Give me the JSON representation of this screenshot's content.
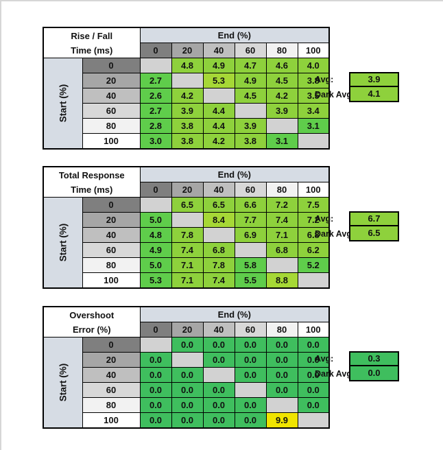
{
  "palette": {
    "green_low": "#5fcd4b",
    "green_mid": "#8ed13c",
    "green_high": "#a6d836",
    "green_pure": "#3fbe5e",
    "yellow": "#f0e400",
    "diagonal_gray": "#d2d2d2",
    "header_blue_gray": "#d6dce4",
    "header_shades": [
      "#7f7f7f",
      "#a6a6a6",
      "#bfbfbf",
      "#d8d8d8",
      "#f2f2f2",
      "#ffffff"
    ]
  },
  "labels": {
    "end_axis": "End (%)",
    "start_axis": "Start (%)",
    "avg": "Avg:",
    "dark_avg": "Dark Avg:"
  },
  "chart_data": [
    {
      "type": "table",
      "title": "Rise / Fall Time (ms)",
      "title_lines": [
        "Rise / Fall",
        "Time (ms)"
      ],
      "columns_label": "End (%)",
      "rows_label": "Start (%)",
      "columns": [
        "0",
        "20",
        "40",
        "60",
        "80",
        "100"
      ],
      "rows": [
        "0",
        "20",
        "40",
        "60",
        "80",
        "100"
      ],
      "values": [
        [
          "",
          "4.8",
          "4.9",
          "4.7",
          "4.6",
          "4.0"
        ],
        [
          "2.7",
          "",
          "5.3",
          "4.9",
          "4.5",
          "3.8"
        ],
        [
          "2.6",
          "4.2",
          "",
          "4.5",
          "4.2",
          "3.5"
        ],
        [
          "2.7",
          "3.9",
          "4.4",
          "",
          "3.9",
          "3.4"
        ],
        [
          "2.8",
          "3.8",
          "4.4",
          "3.9",
          "",
          "3.1"
        ],
        [
          "3.0",
          "3.8",
          "4.2",
          "3.8",
          "3.1",
          ""
        ]
      ],
      "cell_colors": [
        [
          "diagonal_gray",
          "green_mid",
          "green_mid",
          "green_mid",
          "green_mid",
          "green_mid"
        ],
        [
          "green_low",
          "diagonal_gray",
          "green_high",
          "green_mid",
          "green_mid",
          "green_mid"
        ],
        [
          "green_low",
          "green_mid",
          "diagonal_gray",
          "green_mid",
          "green_mid",
          "green_mid"
        ],
        [
          "green_low",
          "green_mid",
          "green_mid",
          "diagonal_gray",
          "green_mid",
          "green_mid"
        ],
        [
          "green_low",
          "green_mid",
          "green_mid",
          "green_mid",
          "diagonal_gray",
          "green_low"
        ],
        [
          "green_low",
          "green_mid",
          "green_mid",
          "green_mid",
          "green_low",
          "diagonal_gray"
        ]
      ],
      "avg": {
        "label": "Avg:",
        "value": "3.9",
        "color": "green_mid"
      },
      "dark_avg": {
        "label": "Dark Avg:",
        "value": "4.1",
        "color": "green_mid"
      }
    },
    {
      "type": "table",
      "title": "Total Response Time (ms)",
      "title_lines": [
        "Total Response",
        "Time (ms)"
      ],
      "columns_label": "End (%)",
      "rows_label": "Start (%)",
      "columns": [
        "0",
        "20",
        "40",
        "60",
        "80",
        "100"
      ],
      "rows": [
        "0",
        "20",
        "40",
        "60",
        "80",
        "100"
      ],
      "values": [
        [
          "",
          "6.5",
          "6.5",
          "6.6",
          "7.2",
          "7.5"
        ],
        [
          "5.0",
          "",
          "8.4",
          "7.7",
          "7.4",
          "7.2"
        ],
        [
          "4.8",
          "7.8",
          "",
          "6.9",
          "7.1",
          "6.8"
        ],
        [
          "4.9",
          "7.4",
          "6.8",
          "",
          "6.8",
          "6.2"
        ],
        [
          "5.0",
          "7.1",
          "7.8",
          "5.8",
          "",
          "5.2"
        ],
        [
          "5.3",
          "7.1",
          "7.4",
          "5.5",
          "8.8",
          ""
        ]
      ],
      "cell_colors": [
        [
          "diagonal_gray",
          "green_mid",
          "green_mid",
          "green_mid",
          "green_mid",
          "green_mid"
        ],
        [
          "green_low",
          "diagonal_gray",
          "green_high",
          "green_mid",
          "green_mid",
          "green_mid"
        ],
        [
          "green_low",
          "green_mid",
          "diagonal_gray",
          "green_mid",
          "green_mid",
          "green_mid"
        ],
        [
          "green_low",
          "green_mid",
          "green_mid",
          "diagonal_gray",
          "green_mid",
          "green_mid"
        ],
        [
          "green_low",
          "green_mid",
          "green_mid",
          "green_low",
          "diagonal_gray",
          "green_low"
        ],
        [
          "green_low",
          "green_mid",
          "green_mid",
          "green_low",
          "green_high",
          "diagonal_gray"
        ]
      ],
      "avg": {
        "label": "Avg:",
        "value": "6.7",
        "color": "green_mid"
      },
      "dark_avg": {
        "label": "Dark Avg:",
        "value": "6.5",
        "color": "green_mid"
      }
    },
    {
      "type": "table",
      "title": "Overshoot Error (%)",
      "title_lines": [
        "Overshoot",
        "Error (%)"
      ],
      "columns_label": "End (%)",
      "rows_label": "Start (%)",
      "columns": [
        "0",
        "20",
        "40",
        "60",
        "80",
        "100"
      ],
      "rows": [
        "0",
        "20",
        "40",
        "60",
        "80",
        "100"
      ],
      "values": [
        [
          "",
          "0.0",
          "0.0",
          "0.0",
          "0.0",
          "0.0"
        ],
        [
          "0.0",
          "",
          "0.0",
          "0.0",
          "0.0",
          "0.0"
        ],
        [
          "0.0",
          "0.0",
          "",
          "0.0",
          "0.0",
          "0.0"
        ],
        [
          "0.0",
          "0.0",
          "0.0",
          "",
          "0.0",
          "0.0"
        ],
        [
          "0.0",
          "0.0",
          "0.0",
          "0.0",
          "",
          "0.0"
        ],
        [
          "0.0",
          "0.0",
          "0.0",
          "0.0",
          "9.9",
          ""
        ]
      ],
      "cell_colors": [
        [
          "diagonal_gray",
          "green_pure",
          "green_pure",
          "green_pure",
          "green_pure",
          "green_pure"
        ],
        [
          "green_pure",
          "diagonal_gray",
          "green_pure",
          "green_pure",
          "green_pure",
          "green_pure"
        ],
        [
          "green_pure",
          "green_pure",
          "diagonal_gray",
          "green_pure",
          "green_pure",
          "green_pure"
        ],
        [
          "green_pure",
          "green_pure",
          "green_pure",
          "diagonal_gray",
          "green_pure",
          "green_pure"
        ],
        [
          "green_pure",
          "green_pure",
          "green_pure",
          "green_pure",
          "diagonal_gray",
          "green_pure"
        ],
        [
          "green_pure",
          "green_pure",
          "green_pure",
          "green_pure",
          "yellow",
          "diagonal_gray"
        ]
      ],
      "avg": {
        "label": "Avg:",
        "value": "0.3",
        "color": "green_pure"
      },
      "dark_avg": {
        "label": "Dark Avg:",
        "value": "0.0",
        "color": "green_pure"
      }
    }
  ]
}
